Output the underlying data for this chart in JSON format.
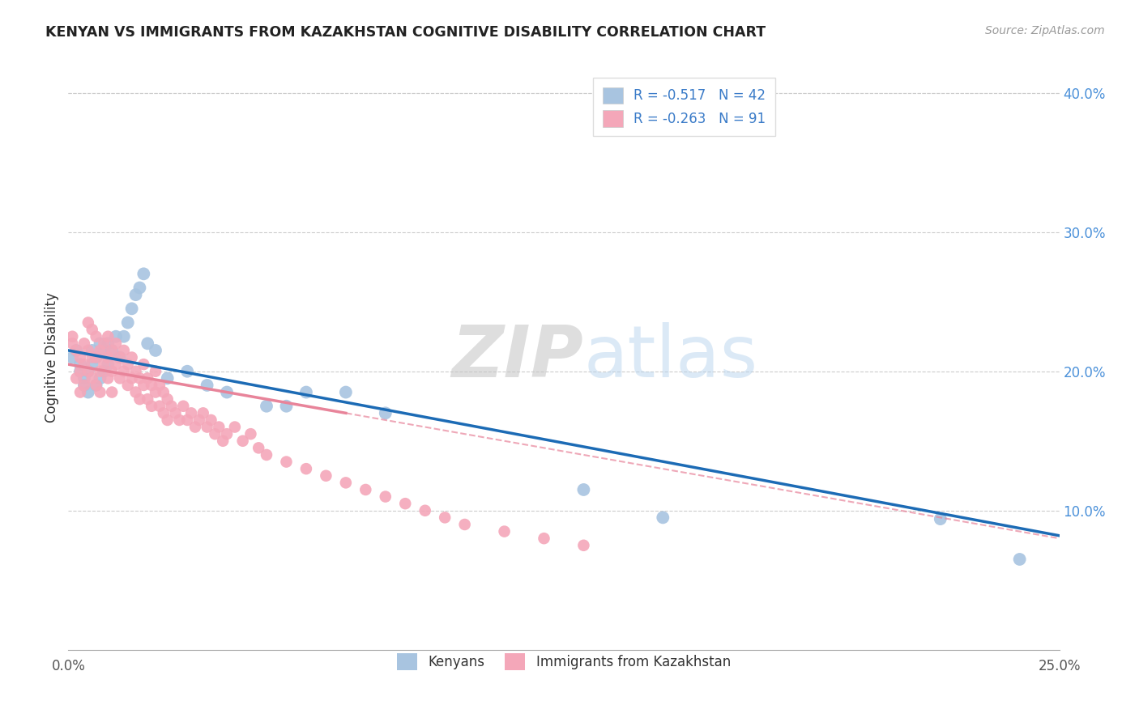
{
  "title": "KENYAN VS IMMIGRANTS FROM KAZAKHSTAN COGNITIVE DISABILITY CORRELATION CHART",
  "source": "Source: ZipAtlas.com",
  "ylabel": "Cognitive Disability",
  "right_yticks": [
    "40.0%",
    "30.0%",
    "20.0%",
    "10.0%"
  ],
  "right_ytick_vals": [
    0.4,
    0.3,
    0.2,
    0.1
  ],
  "kenyan_R": "-0.517",
  "kenyan_N": "42",
  "kazakh_R": "-0.263",
  "kazakh_N": "91",
  "kenyan_color": "#a8c4e0",
  "kazakh_color": "#f4a7b9",
  "kenyan_line_color": "#1c6bb5",
  "kazakh_line_color": "#e8849a",
  "watermark_zip": "ZIP",
  "watermark_atlas": "atlas",
  "xlim": [
    0.0,
    0.25
  ],
  "ylim": [
    0.0,
    0.42
  ],
  "kenyan_x": [
    0.001,
    0.002,
    0.003,
    0.003,
    0.004,
    0.004,
    0.005,
    0.005,
    0.006,
    0.006,
    0.007,
    0.007,
    0.008,
    0.008,
    0.009,
    0.009,
    0.01,
    0.01,
    0.011,
    0.012,
    0.013,
    0.014,
    0.015,
    0.016,
    0.017,
    0.018,
    0.019,
    0.02,
    0.022,
    0.025,
    0.03,
    0.035,
    0.04,
    0.05,
    0.055,
    0.06,
    0.07,
    0.08,
    0.13,
    0.15,
    0.22,
    0.24
  ],
  "kenyan_y": [
    0.21,
    0.215,
    0.2,
    0.205,
    0.19,
    0.195,
    0.185,
    0.2,
    0.205,
    0.215,
    0.19,
    0.21,
    0.195,
    0.22,
    0.2,
    0.215,
    0.22,
    0.205,
    0.215,
    0.225,
    0.21,
    0.225,
    0.235,
    0.245,
    0.255,
    0.26,
    0.27,
    0.22,
    0.215,
    0.195,
    0.2,
    0.19,
    0.185,
    0.175,
    0.175,
    0.185,
    0.185,
    0.17,
    0.115,
    0.095,
    0.094,
    0.065
  ],
  "kazakh_x": [
    0.001,
    0.001,
    0.002,
    0.002,
    0.003,
    0.003,
    0.003,
    0.004,
    0.004,
    0.004,
    0.005,
    0.005,
    0.005,
    0.006,
    0.006,
    0.006,
    0.007,
    0.007,
    0.007,
    0.008,
    0.008,
    0.008,
    0.009,
    0.009,
    0.01,
    0.01,
    0.01,
    0.011,
    0.011,
    0.011,
    0.012,
    0.012,
    0.013,
    0.013,
    0.014,
    0.014,
    0.015,
    0.015,
    0.016,
    0.016,
    0.017,
    0.017,
    0.018,
    0.018,
    0.019,
    0.019,
    0.02,
    0.02,
    0.021,
    0.021,
    0.022,
    0.022,
    0.023,
    0.023,
    0.024,
    0.024,
    0.025,
    0.025,
    0.026,
    0.027,
    0.028,
    0.029,
    0.03,
    0.031,
    0.032,
    0.033,
    0.034,
    0.035,
    0.036,
    0.037,
    0.038,
    0.039,
    0.04,
    0.042,
    0.044,
    0.046,
    0.048,
    0.05,
    0.055,
    0.06,
    0.065,
    0.07,
    0.075,
    0.08,
    0.085,
    0.09,
    0.095,
    0.1,
    0.11,
    0.12,
    0.13
  ],
  "kazakh_y": [
    0.22,
    0.225,
    0.215,
    0.195,
    0.21,
    0.2,
    0.185,
    0.22,
    0.205,
    0.19,
    0.235,
    0.215,
    0.2,
    0.23,
    0.21,
    0.195,
    0.225,
    0.21,
    0.19,
    0.215,
    0.2,
    0.185,
    0.22,
    0.205,
    0.225,
    0.21,
    0.195,
    0.215,
    0.2,
    0.185,
    0.22,
    0.205,
    0.21,
    0.195,
    0.215,
    0.2,
    0.205,
    0.19,
    0.21,
    0.195,
    0.2,
    0.185,
    0.195,
    0.18,
    0.205,
    0.19,
    0.195,
    0.18,
    0.19,
    0.175,
    0.2,
    0.185,
    0.19,
    0.175,
    0.185,
    0.17,
    0.18,
    0.165,
    0.175,
    0.17,
    0.165,
    0.175,
    0.165,
    0.17,
    0.16,
    0.165,
    0.17,
    0.16,
    0.165,
    0.155,
    0.16,
    0.15,
    0.155,
    0.16,
    0.15,
    0.155,
    0.145,
    0.14,
    0.135,
    0.13,
    0.125,
    0.12,
    0.115,
    0.11,
    0.105,
    0.1,
    0.095,
    0.09,
    0.085,
    0.08,
    0.075
  ],
  "kazakh_line_xstart": 0.0,
  "kazakh_line_xend": 0.13,
  "kenyan_line_xstart": 0.0,
  "kenyan_line_xend": 0.25
}
